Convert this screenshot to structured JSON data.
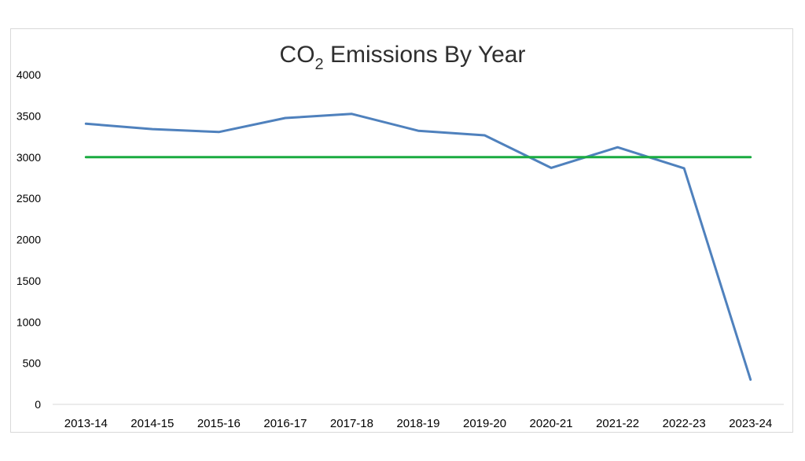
{
  "chart_data": {
    "type": "line",
    "title": "CO",
    "title_subscript": "2",
    "title_suffix": " Emissions By Year",
    "xlabel": "",
    "ylabel": "",
    "categories": [
      "2013-14",
      "2014-15",
      "2015-16",
      "2016-17",
      "2017-18",
      "2018-19",
      "2019-20",
      "2020-21",
      "2021-22",
      "2022-23",
      "2023-24"
    ],
    "series": [
      {
        "values": [
          3405,
          3340,
          3305,
          3475,
          3525,
          3320,
          3265,
          2870,
          3120,
          2865,
          300
        ],
        "color": "#4f81bd"
      },
      {
        "values": [
          3000,
          3000,
          3000,
          3000,
          3000,
          3000,
          3000,
          3000,
          3000,
          3000,
          3000
        ],
        "color": "#1aab40"
      }
    ],
    "ylim": [
      0,
      4000
    ],
    "yticks": [
      0,
      500,
      1000,
      1500,
      2000,
      2500,
      3000,
      3500,
      4000
    ],
    "grid": false,
    "legend": "none"
  }
}
